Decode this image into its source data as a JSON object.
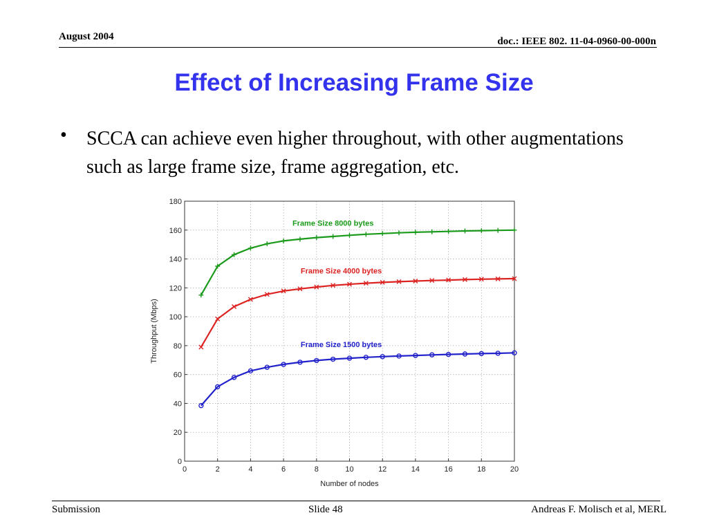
{
  "header": {
    "date": "August 2004",
    "doc": "doc.: IEEE 802. 11-04-0960-00-000n"
  },
  "slide": {
    "title": "Effect of Increasing Frame Size",
    "bullet": "SCCA can achieve even higher throughout, with other augmentations such as large frame size, frame aggregation, etc."
  },
  "footer": {
    "left": "Submission",
    "center": "Slide 48",
    "right": "Andreas F. Molisch et al, MERL"
  },
  "chart_data": {
    "type": "line",
    "title": "",
    "xlabel": "Number of nodes",
    "ylabel": "Throughput (Mbps)",
    "xlim": [
      0,
      20
    ],
    "ylim": [
      0,
      180
    ],
    "xticks": [
      0,
      2,
      4,
      6,
      8,
      10,
      12,
      14,
      16,
      18,
      20
    ],
    "yticks": [
      0,
      20,
      40,
      60,
      80,
      100,
      120,
      140,
      160,
      180
    ],
    "grid": true,
    "x": [
      1,
      2,
      3,
      4,
      5,
      6,
      7,
      8,
      9,
      10,
      11,
      12,
      13,
      14,
      15,
      16,
      17,
      18,
      19,
      20
    ],
    "series": [
      {
        "name": "Frame Size 8000 bytes",
        "color": "#1a9a1a",
        "marker": "plus",
        "values": [
          115,
          135,
          143,
          147.5,
          150.5,
          152.5,
          153.7,
          154.8,
          155.6,
          156.4,
          157.1,
          157.6,
          158.1,
          158.5,
          158.8,
          159.1,
          159.4,
          159.6,
          159.8,
          160
        ]
      },
      {
        "name": "Frame Size 4000 bytes",
        "color": "#dd2222",
        "marker": "x",
        "values": [
          79,
          98.5,
          107,
          112,
          115.5,
          117.8,
          119.3,
          120.6,
          121.7,
          122.5,
          123.2,
          123.8,
          124.3,
          124.7,
          125.1,
          125.4,
          125.7,
          126,
          126.2,
          126.4
        ]
      },
      {
        "name": "Frame Size 1500 bytes",
        "color": "#2222cc",
        "marker": "circle",
        "values": [
          38.5,
          51.5,
          58,
          62.5,
          65,
          67,
          68.5,
          69.7,
          70.6,
          71.3,
          71.9,
          72.4,
          72.8,
          73.2,
          73.6,
          73.9,
          74.2,
          74.5,
          74.7,
          75
        ]
      }
    ],
    "annotations": [
      {
        "text": "Frame Size 8000 bytes",
        "x": 9,
        "y": 163,
        "color": "#1a9a1a"
      },
      {
        "text": "Frame Size 4000 bytes",
        "x": 9.5,
        "y": 130,
        "color": "#dd2222"
      },
      {
        "text": "Frame Size 1500 bytes",
        "x": 9.5,
        "y": 79,
        "color": "#2222cc"
      }
    ]
  }
}
